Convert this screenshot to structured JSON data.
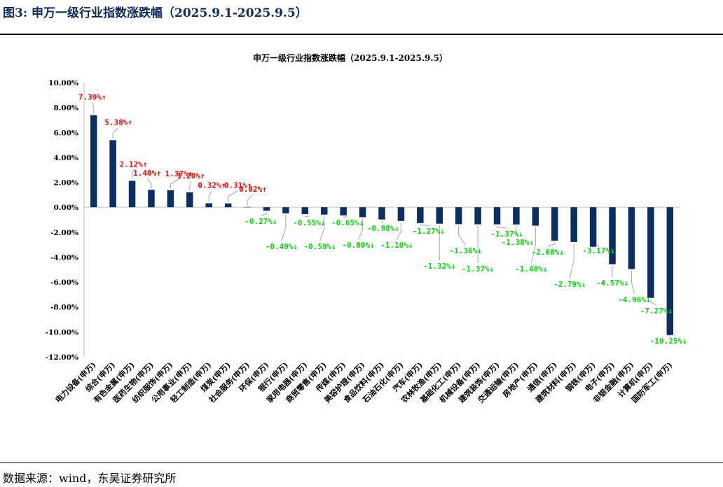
{
  "figure_title": "图3:  申万一级行业指数涨跌幅（2025.9.1-2025.9.5）",
  "source": "数据来源：wind，东吴证券研究所",
  "colors": {
    "bar": "#0b2f63",
    "up": "#ff0000",
    "down": "#00dd00",
    "axis": "#bfbfbf",
    "leader": "#a6a6a6"
  },
  "chart_data": {
    "type": "bar",
    "title": "申万一级行业指数涨跌幅（2025.9.1-2025.9.5）",
    "xlabel": "",
    "ylabel": "",
    "ylim": [
      -12,
      10
    ],
    "yticks": [
      10,
      8,
      6,
      4,
      2,
      0,
      -2,
      -4,
      -6,
      -8,
      -10,
      -12
    ],
    "ytick_labels": [
      "10.00%",
      "8.00%",
      "6.00%",
      "4.00%",
      "2.00%",
      "0.00%",
      "-2.00%",
      "-4.00%",
      "-6.00%",
      "-8.00%",
      "-10.00%",
      "-12.00%"
    ],
    "grid": false,
    "categories": [
      "电力设备(申万)",
      "综合(申万)",
      "有色金属(申万)",
      "医药生物(申万)",
      "纺织服饰(申万)",
      "公用事业(申万)",
      "轻工制造(申万)",
      "煤炭(申万)",
      "社会服务(申万)",
      "环保(申万)",
      "银行(申万)",
      "家用电器(申万)",
      "商贸零售(申万)",
      "传媒(申万)",
      "美容护理(申万)",
      "食品饮料(申万)",
      "石油石化(申万)",
      "汽车(申万)",
      "农林牧渔(申万)",
      "基础化工(申万)",
      "机械设备(申万)",
      "建筑装饰(申万)",
      "交通运输(申万)",
      "房地产(申万)",
      "通信(申万)",
      "建筑材料(申万)",
      "钢铁(申万)",
      "电子(申万)",
      "非银金融(申万)",
      "计算机(申万)",
      "国防军工(申万)"
    ],
    "values": [
      7.39,
      5.38,
      2.12,
      1.4,
      1.37,
      1.2,
      0.32,
      0.31,
      0.02,
      -0.27,
      -0.49,
      -0.55,
      -0.59,
      -0.65,
      -0.8,
      -0.98,
      -1.1,
      -1.27,
      -1.32,
      -1.36,
      -1.37,
      -1.37,
      -1.38,
      -1.48,
      -2.68,
      -2.79,
      -3.17,
      -4.57,
      -4.96,
      -7.27,
      -10.25
    ],
    "data_labels": [
      "7.39%↑",
      "5.38%↑",
      "2.12%↑",
      "1.40%↑",
      "1.37%↑",
      "1.20%↑",
      "0.32%↑",
      "0.31%↑",
      "0.02%↑",
      "-0.27%↓",
      "-0.49%↓",
      "-0.55%↓",
      "-0.59%↓",
      "-0.65%↓",
      "-0.80%↓",
      "-0.98%↓",
      "-1.10%↓",
      "-1.27%↓",
      "-1.32%↓",
      "-1.36%↓",
      "-1.37%↓",
      "-1.37%↓",
      "-1.38%↓",
      "-1.48%↓",
      "-2.68%↓",
      "-2.79%↓",
      "-3.17%↓",
      "-4.57%↓",
      "-4.96%↓",
      "-7.27%↓",
      "-10.25%↓"
    ]
  }
}
